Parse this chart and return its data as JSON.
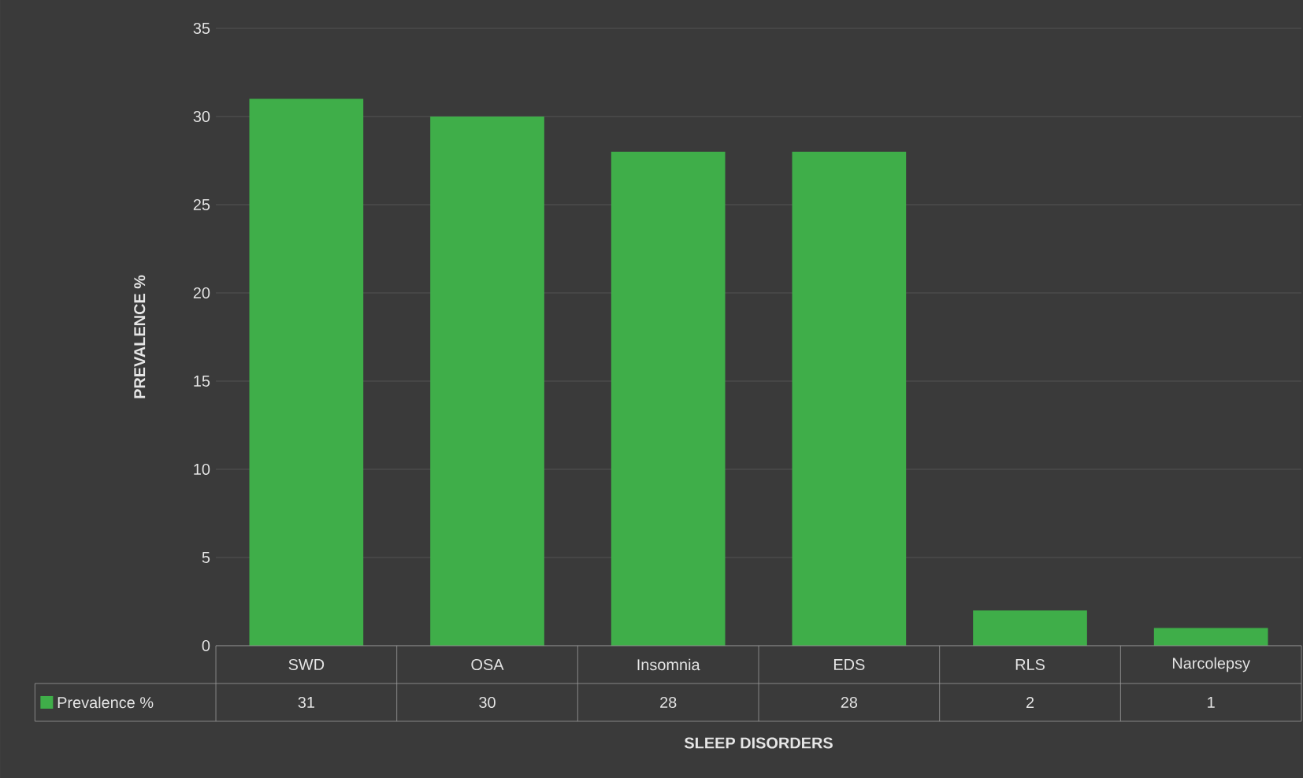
{
  "chart_data": {
    "type": "bar",
    "xlabel": "SLEEP DISORDERS",
    "ylabel": "PREVALENCE %",
    "categories": [
      "SWD",
      "OSA",
      "Insomnia",
      "EDS",
      "RLS",
      "Narcolepsy"
    ],
    "series": [
      {
        "name": "Prevalence %",
        "color": "#3fae49",
        "values": [
          31,
          30,
          28,
          28,
          2,
          1
        ]
      }
    ],
    "ylim": [
      0,
      35
    ],
    "yticks": [
      0,
      5,
      10,
      15,
      20,
      25,
      30,
      35
    ],
    "grid": "y",
    "data_labels": true,
    "legend": "bottom"
  }
}
